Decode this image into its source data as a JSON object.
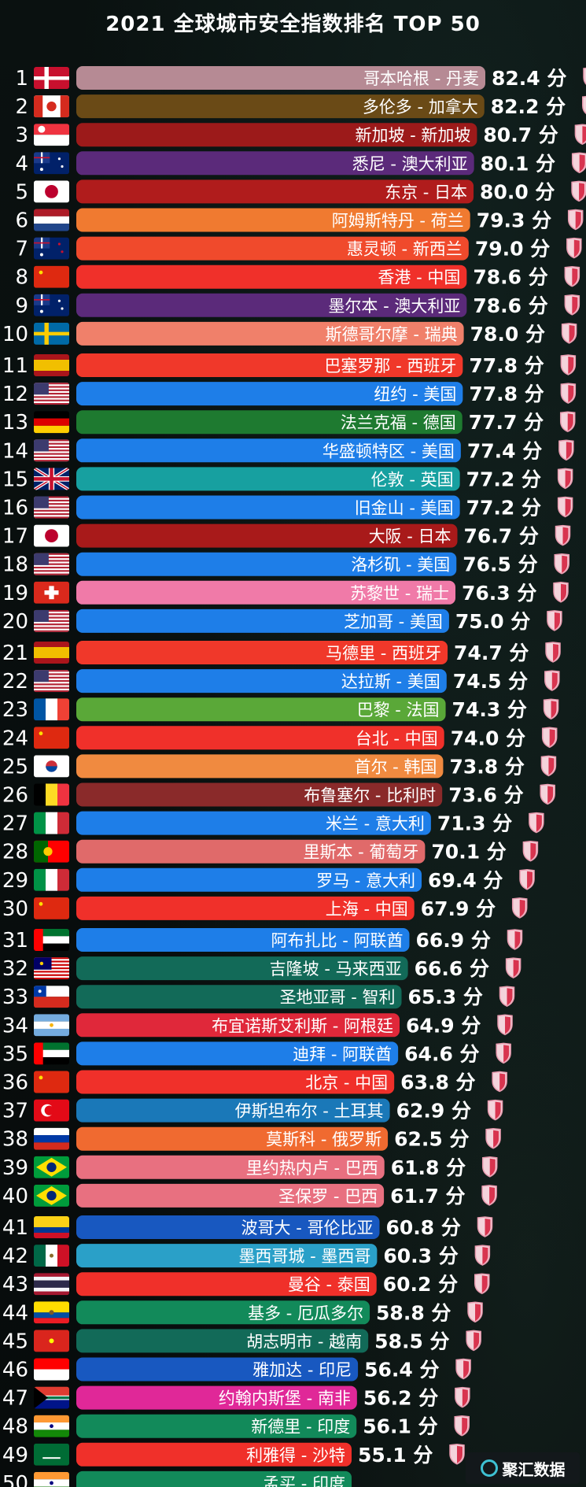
{
  "title": "2021 全球城市安全指数排名 TOP 50",
  "unit": "分",
  "watermark": "聚汇数据",
  "chart_data": {
    "type": "bar",
    "orientation": "horizontal",
    "title": "2021 全球城市安全指数排名 TOP 50",
    "value_suffix": "分",
    "xlim": [
      0,
      82.4
    ],
    "rows": [
      {
        "rank": 1,
        "label": "哥本哈根 - 丹麦",
        "value": 82.4,
        "color": "#b68a94",
        "flag": "dk"
      },
      {
        "rank": 2,
        "label": "多伦多 - 加拿大",
        "value": 82.2,
        "color": "#6a4a16",
        "flag": "ca"
      },
      {
        "rank": 3,
        "label": "新加坡 - 新加坡",
        "value": 80.7,
        "color": "#9c1a1a",
        "flag": "sg"
      },
      {
        "rank": 4,
        "label": "悉尼 - 澳大利亚",
        "value": 80.1,
        "color": "#5b2a7a",
        "flag": "au"
      },
      {
        "rank": 5,
        "label": "东京 - 日本",
        "value": 80.0,
        "color": "#b01c1c",
        "flag": "jp"
      },
      {
        "rank": 6,
        "label": "阿姆斯特丹 - 荷兰",
        "value": 79.3,
        "color": "#f07a30",
        "flag": "nl"
      },
      {
        "rank": 7,
        "label": "惠灵顿 - 新西兰",
        "value": 79.0,
        "color": "#f04a2c",
        "flag": "nz"
      },
      {
        "rank": 8,
        "label": "香港 - 中国",
        "value": 78.6,
        "color": "#f0302a",
        "flag": "cn"
      },
      {
        "rank": 9,
        "label": "墨尔本 - 澳大利亚",
        "value": 78.6,
        "color": "#5b2a7a",
        "flag": "au"
      },
      {
        "rank": 10,
        "label": "斯德哥尔摩 - 瑞典",
        "value": 78.0,
        "color": "#f0806a",
        "flag": "se"
      },
      {
        "rank": 11,
        "label": "巴塞罗那 - 西班牙",
        "value": 77.8,
        "color": "#f0382a",
        "flag": "es"
      },
      {
        "rank": 12,
        "label": "纽约 - 美国",
        "value": 77.8,
        "color": "#1e7ee8",
        "flag": "us"
      },
      {
        "rank": 13,
        "label": "法兰克福 - 德国",
        "value": 77.7,
        "color": "#1e7a30",
        "flag": "de"
      },
      {
        "rank": 14,
        "label": "华盛顿特区 - 美国",
        "value": 77.4,
        "color": "#1e7ee8",
        "flag": "us"
      },
      {
        "rank": 15,
        "label": "伦敦 - 英国",
        "value": 77.2,
        "color": "#17a0a0",
        "flag": "gb"
      },
      {
        "rank": 16,
        "label": "旧金山 - 美国",
        "value": 77.2,
        "color": "#1e7ee8",
        "flag": "us"
      },
      {
        "rank": 17,
        "label": "大阪 - 日本",
        "value": 76.7,
        "color": "#a81a1a",
        "flag": "jp"
      },
      {
        "rank": 18,
        "label": "洛杉矶 - 美国",
        "value": 76.5,
        "color": "#1e7ee8",
        "flag": "us"
      },
      {
        "rank": 19,
        "label": "苏黎世 - 瑞士",
        "value": 76.3,
        "color": "#f07aa8",
        "flag": "ch"
      },
      {
        "rank": 20,
        "label": "芝加哥 - 美国",
        "value": 75.0,
        "color": "#1e7ee8",
        "flag": "us"
      },
      {
        "rank": 21,
        "label": "马德里 - 西班牙",
        "value": 74.7,
        "color": "#f0382a",
        "flag": "es"
      },
      {
        "rank": 22,
        "label": "达拉斯 - 美国",
        "value": 74.5,
        "color": "#1e7ee8",
        "flag": "us"
      },
      {
        "rank": 23,
        "label": "巴黎 - 法国",
        "value": 74.3,
        "color": "#5aa838",
        "flag": "fr"
      },
      {
        "rank": 24,
        "label": "台北 - 中国",
        "value": 74.0,
        "color": "#f0302a",
        "flag": "cn"
      },
      {
        "rank": 25,
        "label": "首尔 - 韩国",
        "value": 73.8,
        "color": "#f08a40",
        "flag": "kr"
      },
      {
        "rank": 26,
        "label": "布鲁塞尔 - 比利时",
        "value": 73.6,
        "color": "#8a2a2a",
        "flag": "be"
      },
      {
        "rank": 27,
        "label": "米兰 - 意大利",
        "value": 71.3,
        "color": "#1e7ee8",
        "flag": "it"
      },
      {
        "rank": 28,
        "label": "里斯本 - 葡萄牙",
        "value": 70.1,
        "color": "#e06a6a",
        "flag": "pt"
      },
      {
        "rank": 29,
        "label": "罗马 - 意大利",
        "value": 69.4,
        "color": "#1e7ee8",
        "flag": "it"
      },
      {
        "rank": 30,
        "label": "上海 - 中国",
        "value": 67.9,
        "color": "#f0302a",
        "flag": "cn"
      },
      {
        "rank": 31,
        "label": "阿布扎比 - 阿联酋",
        "value": 66.9,
        "color": "#1e7ee8",
        "flag": "ae"
      },
      {
        "rank": 32,
        "label": "吉隆坡 - 马来西亚",
        "value": 66.6,
        "color": "#126a58",
        "flag": "my"
      },
      {
        "rank": 33,
        "label": "圣地亚哥 - 智利",
        "value": 65.3,
        "color": "#126a58",
        "flag": "cl"
      },
      {
        "rank": 34,
        "label": "布宜诺斯艾利斯 - 阿根廷",
        "value": 64.9,
        "color": "#e0283a",
        "flag": "ar"
      },
      {
        "rank": 35,
        "label": "迪拜 - 阿联酋",
        "value": 64.6,
        "color": "#1e7ee8",
        "flag": "ae"
      },
      {
        "rank": 36,
        "label": "北京 - 中国",
        "value": 63.8,
        "color": "#f0302a",
        "flag": "cn"
      },
      {
        "rank": 37,
        "label": "伊斯坦布尔 - 土耳其",
        "value": 62.9,
        "color": "#1a78b8",
        "flag": "tr"
      },
      {
        "rank": 38,
        "label": "莫斯科 - 俄罗斯",
        "value": 62.5,
        "color": "#f06a30",
        "flag": "ru"
      },
      {
        "rank": 39,
        "label": "里约热内卢 - 巴西",
        "value": 61.8,
        "color": "#e87080",
        "flag": "br"
      },
      {
        "rank": 40,
        "label": "圣保罗 - 巴西",
        "value": 61.7,
        "color": "#e87080",
        "flag": "br"
      },
      {
        "rank": 41,
        "label": "波哥大 - 哥伦比亚",
        "value": 60.8,
        "color": "#1858c0",
        "flag": "co"
      },
      {
        "rank": 42,
        "label": "墨西哥城 - 墨西哥",
        "value": 60.3,
        "color": "#2aa0c8",
        "flag": "mx"
      },
      {
        "rank": 43,
        "label": "曼谷 - 泰国",
        "value": 60.2,
        "color": "#f0302a",
        "flag": "th"
      },
      {
        "rank": 44,
        "label": "基多 - 厄瓜多尔",
        "value": 58.8,
        "color": "#128a5a",
        "flag": "ec"
      },
      {
        "rank": 45,
        "label": "胡志明市 - 越南",
        "value": 58.5,
        "color": "#126a58",
        "flag": "vn"
      },
      {
        "rank": 46,
        "label": "雅加达 - 印尼",
        "value": 56.4,
        "color": "#1858c0",
        "flag": "id"
      },
      {
        "rank": 47,
        "label": "约翰内斯堡 - 南非",
        "value": 56.2,
        "color": "#e02898",
        "flag": "za"
      },
      {
        "rank": 48,
        "label": "新德里 - 印度",
        "value": 56.1,
        "color": "#128a5a",
        "flag": "in"
      },
      {
        "rank": 49,
        "label": "利雅得 - 沙特",
        "value": 55.1,
        "color": "#f0302a",
        "flag": "sa"
      },
      {
        "rank": 50,
        "label": "孟买 - 印度",
        "value": null,
        "color": "#128a5a",
        "flag": "in"
      }
    ]
  }
}
